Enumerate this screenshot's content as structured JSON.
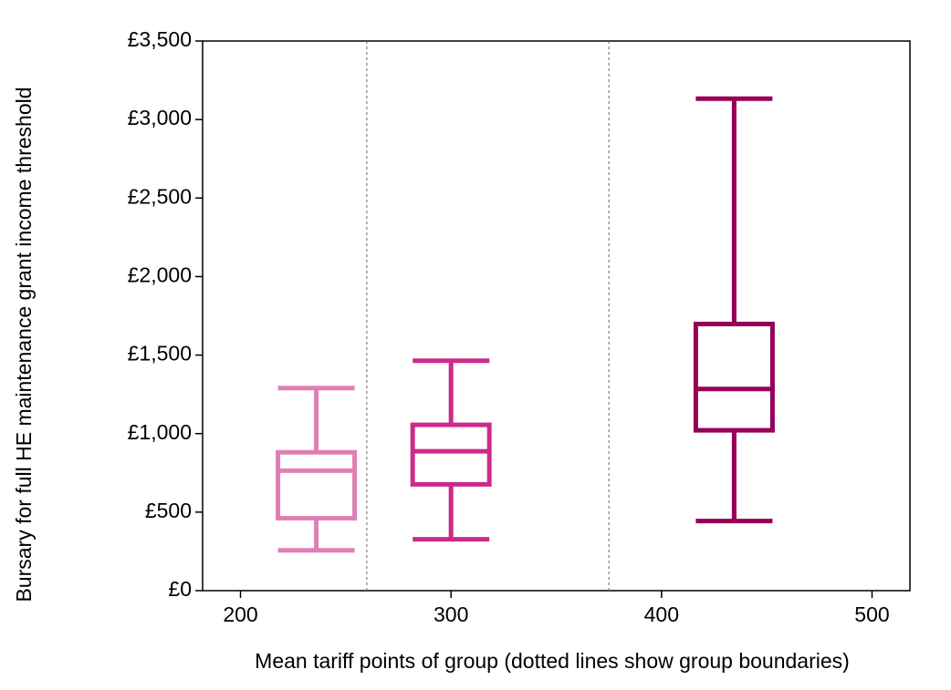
{
  "chart_data": {
    "type": "box",
    "x_label": "Mean tariff points of group (dotted lines show group boundaries)",
    "y_label": "Bursary for full HE maintenance grant income threshold",
    "xlim": [
      182,
      518
    ],
    "xticks": [
      200,
      300,
      400,
      500
    ],
    "ylim": [
      0,
      3500
    ],
    "yticks": [
      {
        "value": 0,
        "label": "£0"
      },
      {
        "value": 500,
        "label": "£500"
      },
      {
        "value": 1000,
        "label": "£1,000"
      },
      {
        "value": 1500,
        "label": "£1,500"
      },
      {
        "value": 2000,
        "label": "£2,000"
      },
      {
        "value": 2500,
        "label": "£2,500"
      },
      {
        "value": 3000,
        "label": "£3,000"
      },
      {
        "value": 3500,
        "label": "£3,500"
      }
    ],
    "boundaries": [
      260,
      375
    ],
    "boxes": [
      {
        "x": 236,
        "whisker_low": 257,
        "q1": 461,
        "median": 764,
        "q3": 881,
        "whisker_high": 1290,
        "color": "#e07fb5"
      },
      {
        "x": 300,
        "whisker_low": 327,
        "q1": 677,
        "median": 887,
        "q3": 1056,
        "whisker_high": 1464,
        "color": "#cc2a8a"
      },
      {
        "x": 434.5,
        "whisker_low": 443,
        "q1": 1021,
        "median": 1284,
        "q3": 1698,
        "whisker_high": 3133,
        "color": "#960058"
      }
    ]
  }
}
